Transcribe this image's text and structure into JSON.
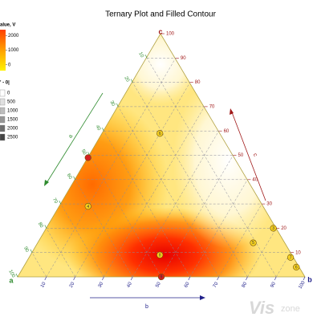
{
  "chart_data": {
    "type": "ternary",
    "title": "Ternary Plot and Filled Contour",
    "axis_labels": {
      "a": "a",
      "b": "b",
      "c": "c"
    },
    "axis_colors": {
      "a": "#2e8b2e",
      "b": "#20208a",
      "c": "#a01818"
    },
    "ticks": [
      10,
      20,
      30,
      40,
      50,
      60,
      70,
      80,
      90,
      100
    ],
    "grid": true,
    "points": [
      {
        "label": "6",
        "a": 21,
        "b": 20,
        "c": 59,
        "color": "#f5d020"
      },
      {
        "label": null,
        "a": 51,
        "b": 0,
        "c": 49,
        "color": "#d42020"
      },
      {
        "label": "4",
        "a": 61,
        "b": 10,
        "c": 29,
        "color": "#f5d020"
      },
      {
        "label": "8",
        "a": 46,
        "b": 45,
        "c": 9,
        "color": "#f5d020"
      },
      {
        "label": "9",
        "a": 50,
        "b": 50,
        "c": 0,
        "color": "#d42020"
      },
      {
        "label": "3",
        "a": 1,
        "b": 79,
        "c": 20,
        "color": "#f5d020"
      },
      {
        "label": "5",
        "a": 11,
        "b": 75,
        "c": 14,
        "color": "#f5d020"
      },
      {
        "label": "7",
        "a": 1,
        "b": 91,
        "c": 8,
        "color": "#f5d020"
      },
      {
        "label": "6",
        "a": 1,
        "b": 95,
        "c": 4,
        "color": "#f5d020"
      }
    ],
    "colorbar": {
      "title": "alue, V",
      "lim": [
        -400,
        2400
      ],
      "ticks": [
        0,
        1000,
        2000
      ]
    },
    "size_legend": {
      "title": "' - 0|",
      "values": [
        0,
        500,
        1000,
        1500,
        2000,
        2500
      ],
      "colors": [
        "#ffffff",
        "#e0e0e0",
        "#bdbdbd",
        "#969696",
        "#6e6e6e",
        "#444444"
      ]
    },
    "watermark": [
      "Vis",
      "zone"
    ]
  }
}
